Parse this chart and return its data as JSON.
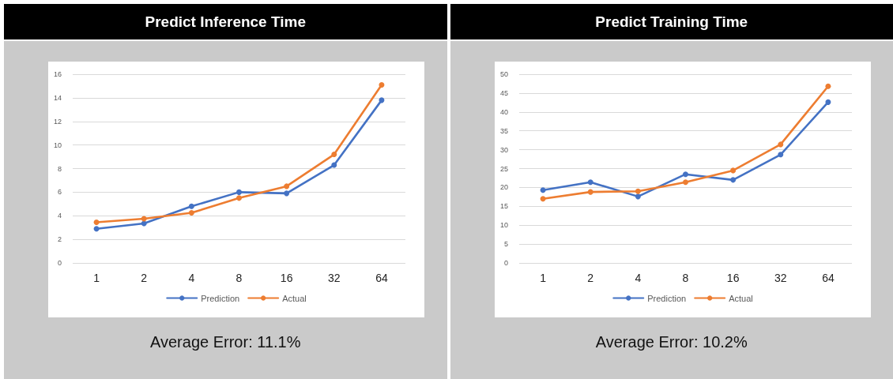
{
  "chart_data": [
    {
      "type": "line",
      "title": "Predict Inference Time",
      "annotations": [
        "Average Error: 11.1%"
      ],
      "categories": [
        "1",
        "2",
        "4",
        "8",
        "16",
        "32",
        "64"
      ],
      "series": [
        {
          "name": "Prediction",
          "color": "#4472c4",
          "values": [
            2.9,
            3.35,
            4.8,
            6.0,
            5.9,
            8.3,
            13.8
          ]
        },
        {
          "name": "Actual",
          "color": "#ed7d31",
          "values": [
            3.45,
            3.75,
            4.25,
            5.5,
            6.5,
            9.2,
            15.1
          ]
        }
      ],
      "ylim": [
        0,
        16
      ],
      "yticks": [
        0,
        2,
        4,
        6,
        8,
        10,
        12,
        14,
        16
      ],
      "grid": "y",
      "legend": "bottom",
      "marker": "circle"
    },
    {
      "type": "line",
      "title": "Predict Training Time",
      "annotations": [
        "Average Error: 10.2%"
      ],
      "categories": [
        "1",
        "2",
        "4",
        "8",
        "16",
        "32",
        "64"
      ],
      "series": [
        {
          "name": "Prediction",
          "color": "#4472c4",
          "values": [
            19.3,
            21.4,
            17.6,
            23.5,
            22.0,
            28.7,
            42.6
          ]
        },
        {
          "name": "Actual",
          "color": "#ed7d31",
          "values": [
            17.0,
            18.8,
            19.0,
            21.4,
            24.5,
            31.4,
            46.8
          ]
        }
      ],
      "ylim": [
        0,
        50
      ],
      "yticks": [
        0,
        5,
        10,
        15,
        20,
        25,
        30,
        35,
        40,
        45,
        50
      ],
      "grid": "y",
      "legend": "bottom",
      "marker": "circle"
    }
  ]
}
